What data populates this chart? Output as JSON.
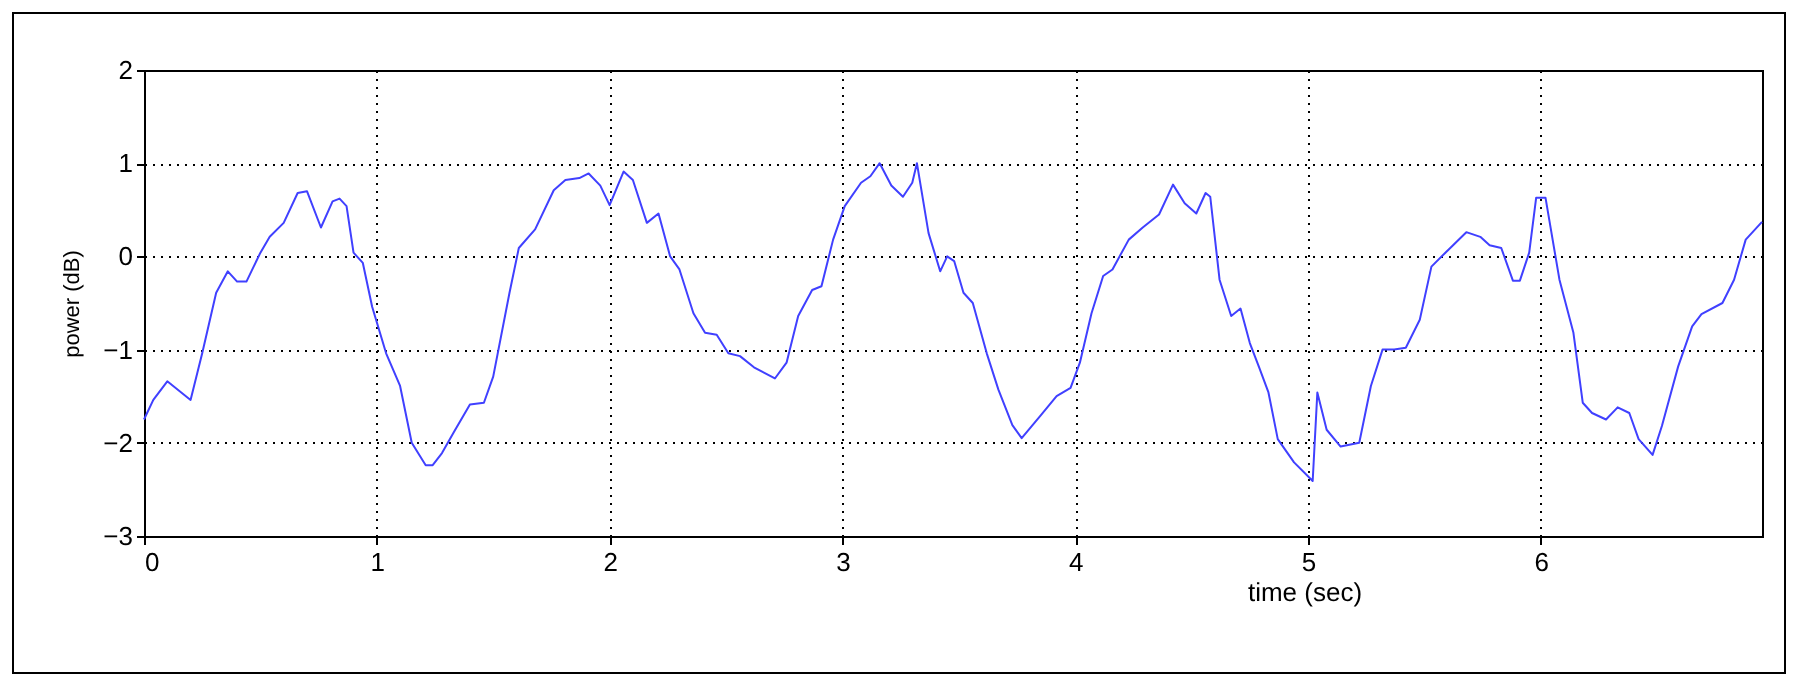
{
  "chart_data": {
    "type": "line",
    "xlabel": "time (sec)",
    "ylabel": "power (dB)",
    "xlim": [
      0,
      6.95
    ],
    "xticks": [
      0,
      1,
      2,
      3,
      4,
      5,
      6
    ],
    "ylim": [
      -3,
      2
    ],
    "yticks": [
      -3,
      -2,
      -1,
      0,
      1,
      2
    ],
    "grid": true,
    "x": [
      0,
      0.04,
      0.1,
      0.2,
      0.25,
      0.31,
      0.36,
      0.4,
      0.44,
      0.5,
      0.54,
      0.6,
      0.66,
      0.7,
      0.76,
      0.81,
      0.84,
      0.87,
      0.9,
      0.94,
      0.98,
      1.04,
      1.1,
      1.15,
      1.21,
      1.24,
      1.28,
      1.33,
      1.4,
      1.46,
      1.5,
      1.57,
      1.61,
      1.68,
      1.76,
      1.81,
      1.87,
      1.91,
      1.96,
      2.0,
      2.06,
      2.1,
      2.16,
      2.21,
      2.26,
      2.3,
      2.36,
      2.41,
      2.46,
      2.51,
      2.56,
      2.62,
      2.71,
      2.76,
      2.81,
      2.87,
      2.91,
      2.96,
      3.01,
      3.08,
      3.12,
      3.16,
      3.21,
      3.26,
      3.3,
      3.32,
      3.37,
      3.42,
      3.45,
      3.48,
      3.52,
      3.56,
      3.62,
      3.67,
      3.73,
      3.77,
      3.85,
      3.92,
      3.98,
      4.02,
      4.07,
      4.12,
      4.16,
      4.23,
      4.29,
      4.36,
      4.42,
      4.47,
      4.52,
      4.56,
      4.58,
      4.62,
      4.67,
      4.71,
      4.75,
      4.79,
      4.83,
      4.87,
      4.94,
      5.02,
      5.04,
      5.08,
      5.14,
      5.22,
      5.27,
      5.32,
      5.37,
      5.42,
      5.48,
      5.53,
      5.59,
      5.68,
      5.74,
      5.78,
      5.83,
      5.88,
      5.91,
      5.95,
      5.98,
      6.02,
      6.08,
      6.14,
      6.18,
      6.22,
      6.28,
      6.33,
      6.38,
      6.42,
      6.48,
      6.52,
      6.59,
      6.65,
      6.69,
      6.78,
      6.83,
      6.88,
      6.95
    ],
    "series": [
      {
        "color": "#4040ff",
        "values": [
          -1.75,
          -1.54,
          -1.34,
          -1.54,
          -1.04,
          -0.39,
          -0.16,
          -0.27,
          -0.27,
          0.04,
          0.21,
          0.36,
          0.68,
          0.7,
          0.31,
          0.59,
          0.62,
          0.54,
          0.04,
          -0.07,
          -0.54,
          -1.04,
          -1.39,
          -2.0,
          -2.24,
          -2.24,
          -2.11,
          -1.89,
          -1.59,
          -1.57,
          -1.29,
          -0.39,
          0.09,
          0.29,
          0.71,
          0.82,
          0.84,
          0.89,
          0.76,
          0.55,
          0.91,
          0.82,
          0.36,
          0.46,
          0,
          -0.14,
          -0.61,
          -0.82,
          -0.84,
          -1.04,
          -1.07,
          -1.19,
          -1.31,
          -1.14,
          -0.64,
          -0.36,
          -0.32,
          0.18,
          0.54,
          0.79,
          0.86,
          1.0,
          0.76,
          0.64,
          0.79,
          1.0,
          0.25,
          -0.16,
          0,
          -0.05,
          -0.39,
          -0.5,
          -1.04,
          -1.43,
          -1.81,
          -1.95,
          -1.71,
          -1.5,
          -1.41,
          -1.14,
          -0.61,
          -0.21,
          -0.14,
          0.18,
          0.31,
          0.45,
          0.77,
          0.57,
          0.46,
          0.68,
          0.64,
          -0.25,
          -0.64,
          -0.56,
          -0.93,
          -1.19,
          -1.46,
          -1.96,
          -2.21,
          -2.41,
          -1.46,
          -1.86,
          -2.04,
          -2.0,
          -1.39,
          -1.0,
          -1.0,
          -0.98,
          -0.68,
          -0.11,
          0.04,
          0.26,
          0.21,
          0.12,
          0.09,
          -0.26,
          -0.26,
          0.04,
          0.63,
          0.63,
          -0.25,
          -0.82,
          -1.57,
          -1.68,
          -1.75,
          -1.62,
          -1.68,
          -1.96,
          -2.13,
          -1.82,
          -1.18,
          -0.75,
          -0.62,
          -0.5,
          -0.25,
          0.18,
          0.37
        ]
      }
    ]
  }
}
